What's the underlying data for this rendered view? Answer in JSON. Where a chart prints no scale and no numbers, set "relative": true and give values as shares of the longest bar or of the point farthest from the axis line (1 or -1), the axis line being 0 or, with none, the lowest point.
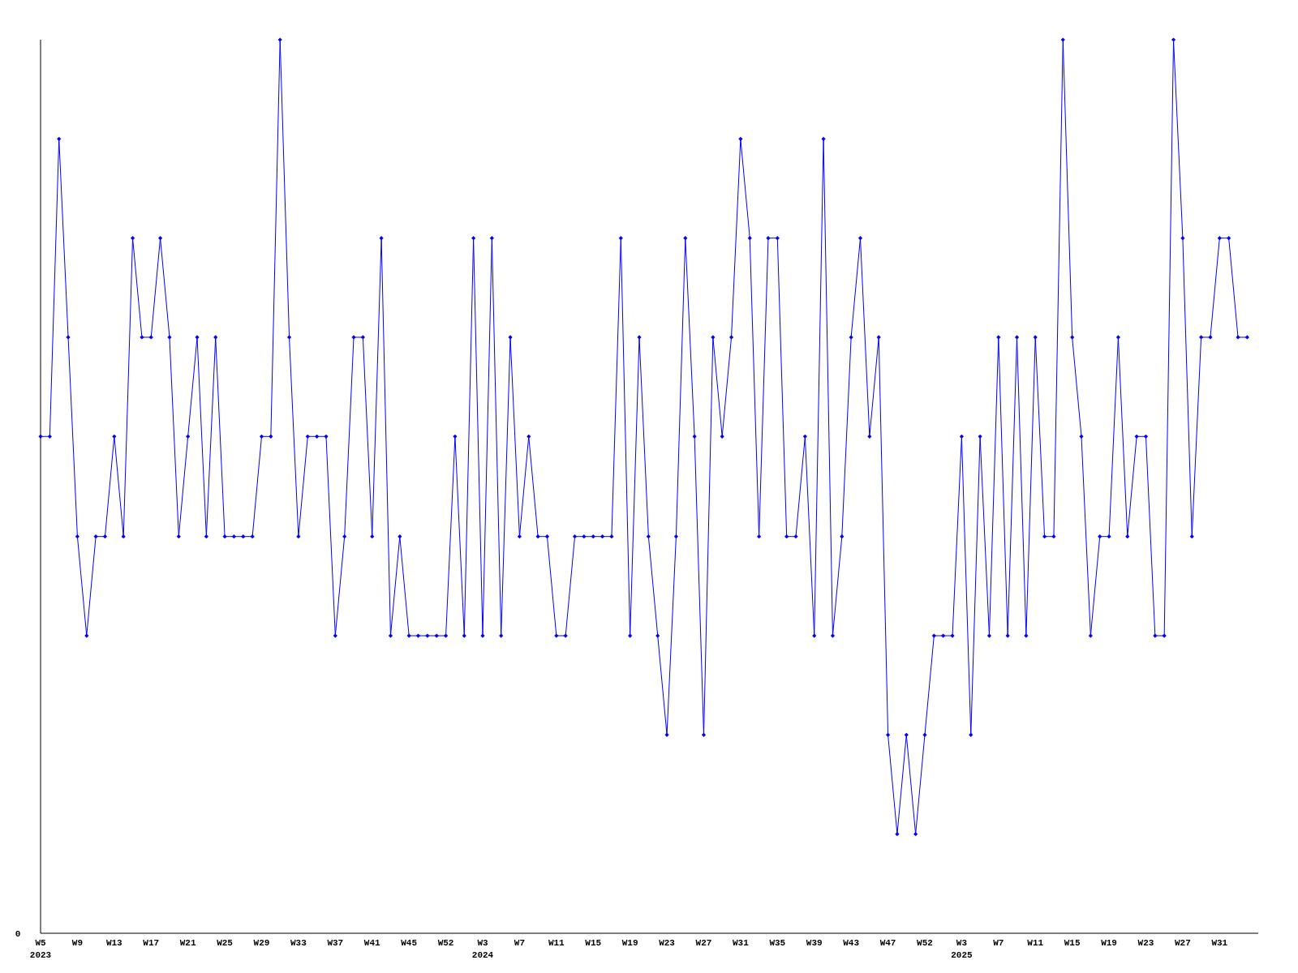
{
  "chart_data": {
    "type": "line",
    "relative": true,
    "annotations": [
      "0"
    ],
    "marker": "diamond",
    "line_style": "solid",
    "categories": [
      "W5\n2023",
      null,
      null,
      null,
      "W9",
      null,
      null,
      null,
      "W13",
      null,
      null,
      null,
      "W17",
      null,
      null,
      null,
      "W21",
      null,
      null,
      null,
      "W25",
      null,
      null,
      null,
      "W29",
      null,
      null,
      null,
      "W33",
      null,
      null,
      null,
      "W37",
      null,
      null,
      null,
      "W41",
      null,
      null,
      null,
      "W45",
      null,
      null,
      null,
      "W52",
      null,
      null,
      null,
      "W3\n2024",
      null,
      null,
      null,
      "W7",
      null,
      null,
      null,
      "W11",
      null,
      null,
      null,
      "W15",
      null,
      null,
      null,
      "W19",
      null,
      null,
      null,
      "W23",
      null,
      null,
      null,
      "W27",
      null,
      null,
      null,
      "W31",
      null,
      null,
      null,
      "W35",
      null,
      null,
      null,
      "W39",
      null,
      null,
      null,
      "W43",
      null,
      null,
      null,
      "W47",
      null,
      null,
      null,
      "W52",
      null,
      null,
      null,
      "W3\n2025",
      null,
      null,
      null,
      "W7",
      null,
      null,
      null,
      "W11",
      null,
      null,
      null,
      "W15",
      null,
      null,
      null,
      "W19",
      null,
      null,
      null,
      "W23",
      null,
      null,
      null,
      "W27",
      null,
      null,
      null,
      "W31",
      null,
      null,
      null
    ],
    "series": [
      {
        "color": "#0000ff",
        "values": [
          0.556,
          0.556,
          0.889,
          0.667,
          0.444,
          0.333,
          0.444,
          0.444,
          0.556,
          0.444,
          0.778,
          0.667,
          0.667,
          0.778,
          0.667,
          0.444,
          0.556,
          0.667,
          0.444,
          0.667,
          0.444,
          0.444,
          0.444,
          0.444,
          0.556,
          0.556,
          1,
          0.667,
          0.444,
          0.556,
          0.556,
          0.556,
          0.333,
          0.444,
          0.667,
          0.667,
          0.444,
          0.778,
          0.333,
          0.444,
          0.333,
          0.333,
          0.333,
          0.333,
          0.333,
          0.556,
          0.333,
          0.778,
          0.333,
          0.778,
          0.333,
          0.667,
          0.444,
          0.556,
          0.444,
          0.444,
          0.333,
          0.333,
          0.444,
          0.444,
          0.444,
          0.444,
          0.444,
          0.778,
          0.333,
          0.667,
          0.444,
          0.333,
          0.222,
          0.444,
          0.778,
          0.556,
          0.222,
          0.667,
          0.556,
          0.667,
          0.889,
          0.778,
          0.444,
          0.778,
          0.778,
          0.444,
          0.444,
          0.556,
          0.333,
          0.889,
          0.333,
          0.444,
          0.667,
          0.778,
          0.556,
          0.667,
          0.222,
          0.111,
          0.222,
          0.111,
          0.222,
          0.333,
          0.333,
          0.333,
          0.556,
          0.222,
          0.556,
          0.333,
          0.667,
          0.333,
          0.667,
          0.333,
          0.667,
          0.444,
          0.444,
          1,
          0.667,
          0.556,
          0.333,
          0.444,
          0.444,
          0.667,
          0.444,
          0.556,
          0.556,
          0.333,
          0.333,
          1,
          0.778,
          0.444,
          0.667,
          0.667,
          0.778,
          0.778,
          0.667,
          0.667
        ]
      }
    ]
  }
}
